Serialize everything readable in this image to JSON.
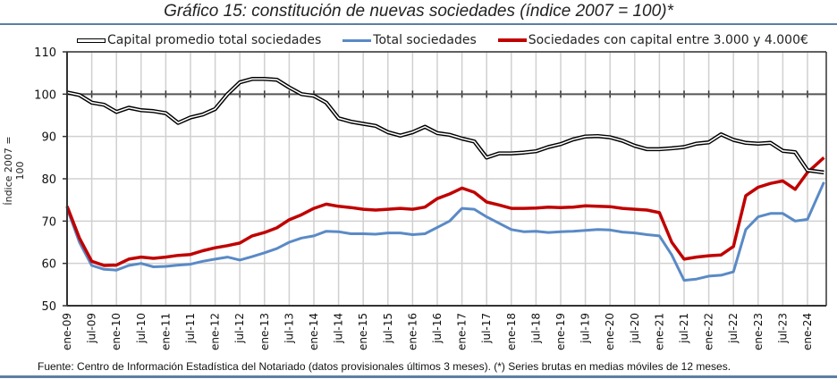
{
  "chart_data": {
    "type": "line",
    "title": "Gráfico 15: constitución de nuevas sociedades (índice 2007 = 100)*",
    "xlabel": "",
    "ylabel": "Índice 2007 = 100",
    "ylim": [
      50,
      110
    ],
    "yticks": [
      "50",
      "60",
      "70",
      "80",
      "90",
      "100",
      "110"
    ],
    "grid": true,
    "legend_position": "top",
    "x_tick_labels": [
      "ene-09",
      "jul-09",
      "ene-10",
      "jul-10",
      "ene-11",
      "jul-11",
      "ene-12",
      "jul-12",
      "ene-13",
      "jul-13",
      "ene-14",
      "jul-14",
      "ene-15",
      "jul-15",
      "ene-16",
      "jul-16",
      "ene-17",
      "jul-17",
      "ene-18",
      "jul-18",
      "ene-19",
      "jul-19",
      "ene-20",
      "jul-20",
      "ene-21",
      "jul-21",
      "ene-22",
      "jul-22",
      "ene-23",
      "jul-23",
      "ene-24"
    ],
    "x_months": [
      0,
      3,
      6,
      9,
      12,
      15,
      18,
      21,
      24,
      27,
      30,
      33,
      36,
      39,
      42,
      45,
      48,
      51,
      54,
      57,
      60,
      63,
      66,
      69,
      72,
      75,
      78,
      81,
      84,
      87,
      90,
      93,
      96,
      99,
      102,
      105,
      108,
      111,
      114,
      117,
      120,
      123,
      126,
      129,
      132,
      135,
      138,
      141,
      144,
      147,
      150,
      153,
      156,
      159,
      162,
      165,
      168,
      171,
      174,
      177,
      180,
      184
    ],
    "series": [
      {
        "name": "Capital promedio total sociedades",
        "color": "#000000",
        "values": [
          100.4,
          99.8,
          98,
          97.5,
          95.8,
          96.8,
          96.2,
          96,
          95.5,
          93.2,
          94.5,
          95.2,
          96.5,
          100,
          102.8,
          103.6,
          103.6,
          103.4,
          101.6,
          100,
          99.6,
          98,
          94.3,
          93.5,
          93,
          92.5,
          91,
          90.2,
          91,
          92.3,
          90.8,
          90.4,
          89.5,
          88.8,
          85,
          86,
          86,
          86.2,
          86.5,
          87.5,
          88.2,
          89.3,
          90,
          90.1,
          89.8,
          89,
          87.8,
          87,
          87,
          87.2,
          87.5,
          88.3,
          88.6,
          90.5,
          89.2,
          88.5,
          88.3,
          88.5,
          86.6,
          86.3,
          82,
          81.5
        ]
      },
      {
        "name": "Total sociedades",
        "color": "#5a8ac6",
        "values": [
          73,
          65,
          59.5,
          58.6,
          58.4,
          59.5,
          60,
          59.2,
          59.3,
          59.6,
          59.8,
          60.5,
          61,
          61.5,
          60.8,
          61.6,
          62.5,
          63.5,
          65,
          66,
          66.5,
          67.6,
          67.5,
          67,
          67,
          66.9,
          67.2,
          67.2,
          66.8,
          67,
          68.5,
          70,
          73,
          72.8,
          71,
          69.5,
          68,
          67.5,
          67.6,
          67.3,
          67.5,
          67.6,
          67.8,
          68,
          67.9,
          67.4,
          67.2,
          66.8,
          66.5,
          62,
          56,
          56.3,
          57,
          57.2,
          58,
          68,
          71,
          71.8,
          71.8,
          70,
          70.4,
          79.2
        ]
      },
      {
        "name": "Sociedades con capital entre 3.000 y 4.000€",
        "color": "#c00000",
        "values": [
          73.5,
          66,
          60.5,
          59.5,
          59.6,
          61,
          61.5,
          61.2,
          61.5,
          61.9,
          62.1,
          63,
          63.7,
          64.2,
          64.8,
          66.5,
          67.3,
          68.4,
          70.3,
          71.5,
          73,
          74,
          73.5,
          73.2,
          72.8,
          72.6,
          72.8,
          73,
          72.8,
          73.3,
          75.3,
          76.4,
          77.8,
          76.8,
          74.5,
          73.8,
          73,
          73,
          73.1,
          73.3,
          73.2,
          73.3,
          73.6,
          73.5,
          73.4,
          73,
          72.8,
          72.6,
          72,
          65,
          61,
          61.5,
          61.8,
          62,
          64,
          76,
          78,
          78.9,
          79.5,
          77.5,
          81.5,
          85
        ]
      }
    ],
    "legend": [
      "Capital promedio total sociedades",
      "Total sociedades",
      "Sociedades con capital entre 3.000 y 4.000€"
    ],
    "source": "Fuente: Centro de Información Estadística del Notariado (datos provisionales últimos 3 meses). (*) Series brutas en medias móviles de 12 meses."
  }
}
